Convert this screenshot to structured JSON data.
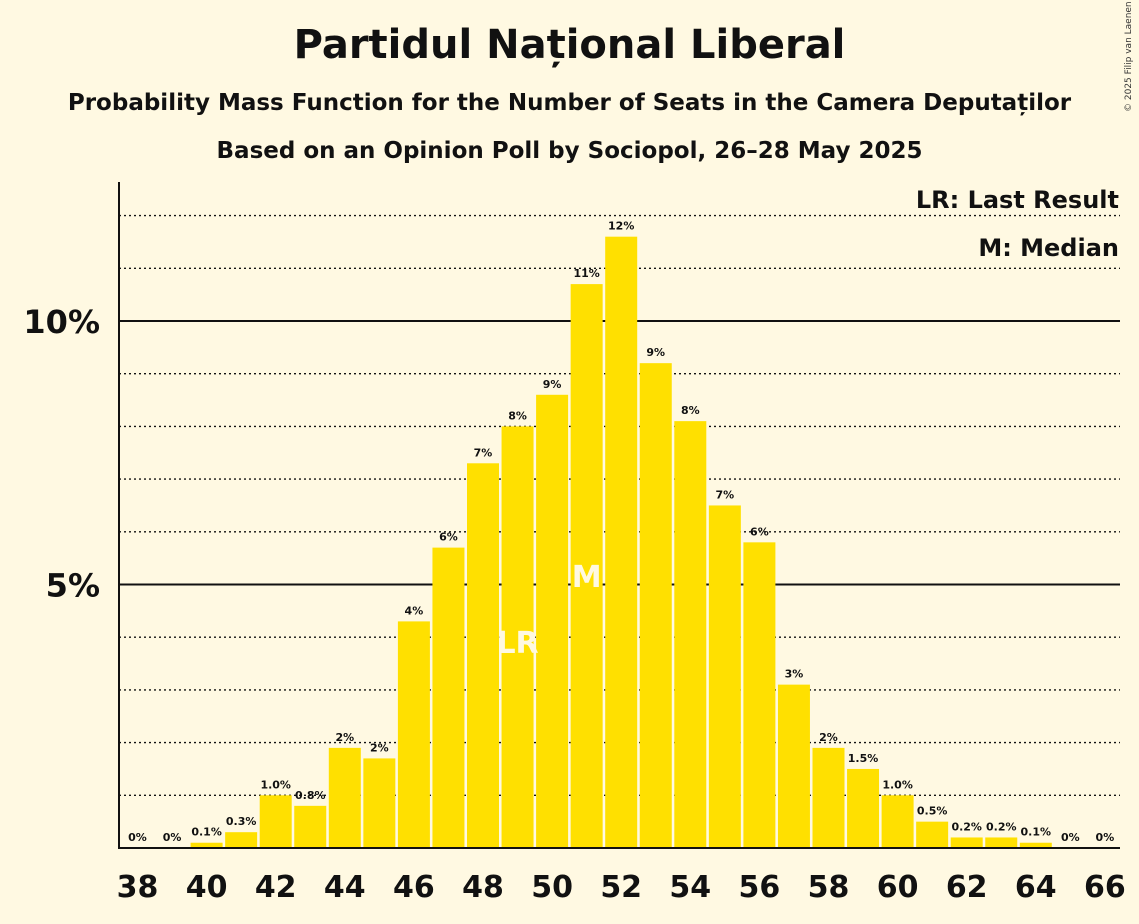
{
  "chart_data": {
    "type": "bar",
    "title": "Partidul Național Liberal",
    "subtitle": "Probability Mass Function for the Number of Seats in the Camera Deputaților",
    "subtitle2": "Based on an Opinion Poll by Sociopol, 26–28 May 2025",
    "copyright": "© 2025 Filip van Laenen",
    "legend": {
      "lr": "LR: Last Result",
      "m": "M: Median",
      "placement": "top-right"
    },
    "x": [
      38,
      39,
      40,
      41,
      42,
      43,
      44,
      45,
      46,
      47,
      48,
      49,
      50,
      51,
      52,
      53,
      54,
      55,
      56,
      57,
      58,
      59,
      60,
      61,
      62,
      63,
      64,
      65,
      66
    ],
    "values": [
      0,
      0,
      0.1,
      0.3,
      1.0,
      0.8,
      1.9,
      1.7,
      4.3,
      5.7,
      7.3,
      8.0,
      8.6,
      10.7,
      11.6,
      9.2,
      8.1,
      6.5,
      5.8,
      3.1,
      1.9,
      1.5,
      1.0,
      0.5,
      0.2,
      0.2,
      0.1,
      0,
      0
    ],
    "data_labels": [
      "0%",
      "0%",
      "0.1%",
      "0.3%",
      "1.0%",
      "0.8%",
      "2%",
      "2%",
      "4%",
      "6%",
      "7%",
      "8%",
      "9%",
      "11%",
      "12%",
      "9%",
      "8%",
      "7%",
      "6%",
      "3%",
      "2%",
      "1.5%",
      "1.0%",
      "0.5%",
      "0.2%",
      "0.2%",
      "0.1%",
      "0%",
      "0%"
    ],
    "x_tick_labels": [
      "38",
      "40",
      "42",
      "44",
      "46",
      "48",
      "50",
      "52",
      "54",
      "56",
      "58",
      "60",
      "62",
      "64",
      "66"
    ],
    "y_ticks": [
      5,
      10
    ],
    "y_tick_labels": [
      "5%",
      "10%"
    ],
    "ylim": [
      0,
      12.5
    ],
    "last_result_seat": 49,
    "last_result_label": "LR",
    "median_seat": 51,
    "median_label": "M",
    "grid": "dotted at every 1%",
    "colors": {
      "bar": "#ffe000",
      "background": "#fff9e2",
      "axis": "#111111",
      "marker_text": "#fff9e2"
    }
  }
}
